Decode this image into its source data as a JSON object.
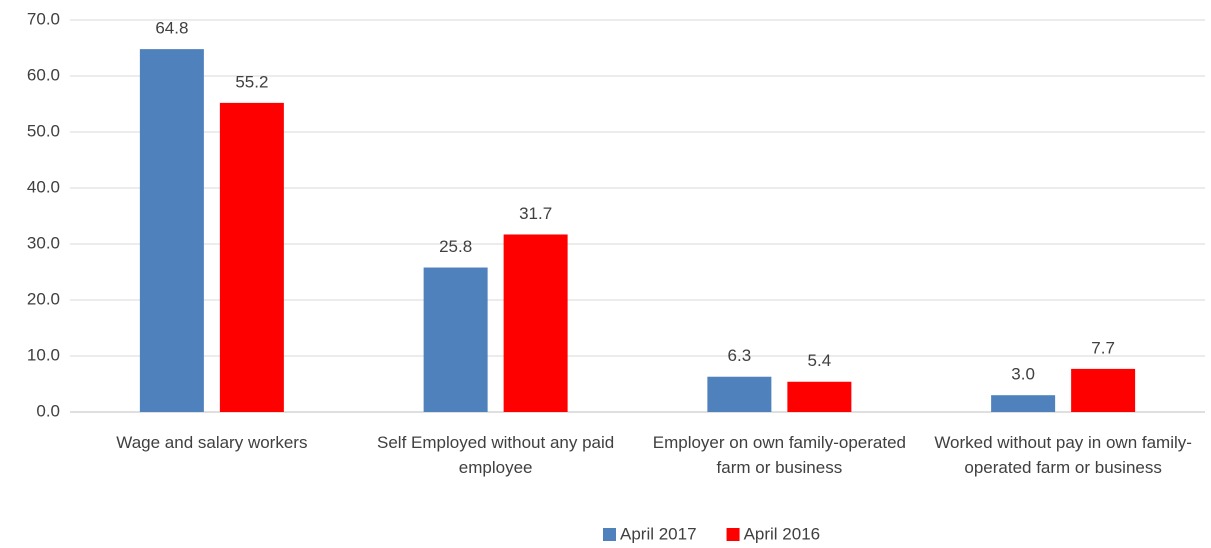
{
  "chart_data": {
    "type": "bar",
    "categories": [
      "Wage and salary workers",
      "Self Employed without any paid employee",
      "Employer on own family-operated farm or business",
      "Worked without pay in own family-operated farm or business"
    ],
    "series": [
      {
        "name": "April 2017",
        "color": "#4f81bd",
        "values": [
          64.8,
          25.8,
          6.3,
          3
        ],
        "value_labels": [
          "64.8",
          "25.8",
          "6.3",
          "3.0"
        ]
      },
      {
        "name": "April 2016",
        "color": "#ff0000",
        "values": [
          55.2,
          31.7,
          5.4,
          7.7
        ],
        "value_labels": [
          "55.2",
          "31.7",
          "5.4",
          "7.7"
        ]
      }
    ],
    "ylim": [
      0,
      70
    ],
    "yticks": [
      {
        "value": 0,
        "label": "0.0"
      },
      {
        "value": 10,
        "label": "10.0"
      },
      {
        "value": 20,
        "label": "20.0"
      },
      {
        "value": 30,
        "label": "30.0"
      },
      {
        "value": 40,
        "label": "40.0"
      },
      {
        "value": 50,
        "label": "50.0"
      },
      {
        "value": 60,
        "label": "60.0"
      },
      {
        "value": 70,
        "label": "70.0"
      }
    ],
    "grid": true,
    "legend": "bottom"
  }
}
